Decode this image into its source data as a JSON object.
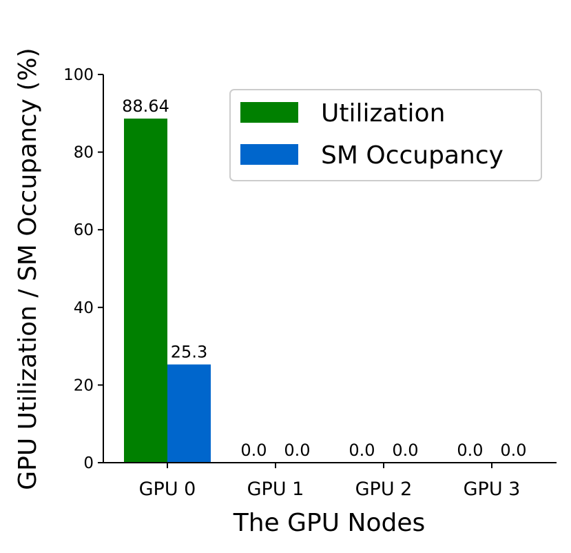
{
  "chart_data": {
    "type": "bar",
    "categories": [
      "GPU 0",
      "GPU 1",
      "GPU 2",
      "GPU 3"
    ],
    "series": [
      {
        "name": "Utilization",
        "values": [
          88.64,
          0.0,
          0.0,
          0.0
        ],
        "labels": [
          "88.64",
          "0.0",
          "0.0",
          "0.0"
        ],
        "color": "#008000"
      },
      {
        "name": "SM Occupancy",
        "values": [
          25.3,
          0.0,
          0.0,
          0.0
        ],
        "labels": [
          "25.3",
          "0.0",
          "0.0",
          "0.0"
        ],
        "color": "#0066cc"
      }
    ],
    "xlabel": "The GPU Nodes",
    "ylabel": "GPU Utilization / SM Occupancy (%)",
    "ylim": [
      0,
      100
    ],
    "yticks": [
      "0",
      "20",
      "40",
      "60",
      "80",
      "100"
    ],
    "grid": false,
    "legend_position": "top-right"
  }
}
